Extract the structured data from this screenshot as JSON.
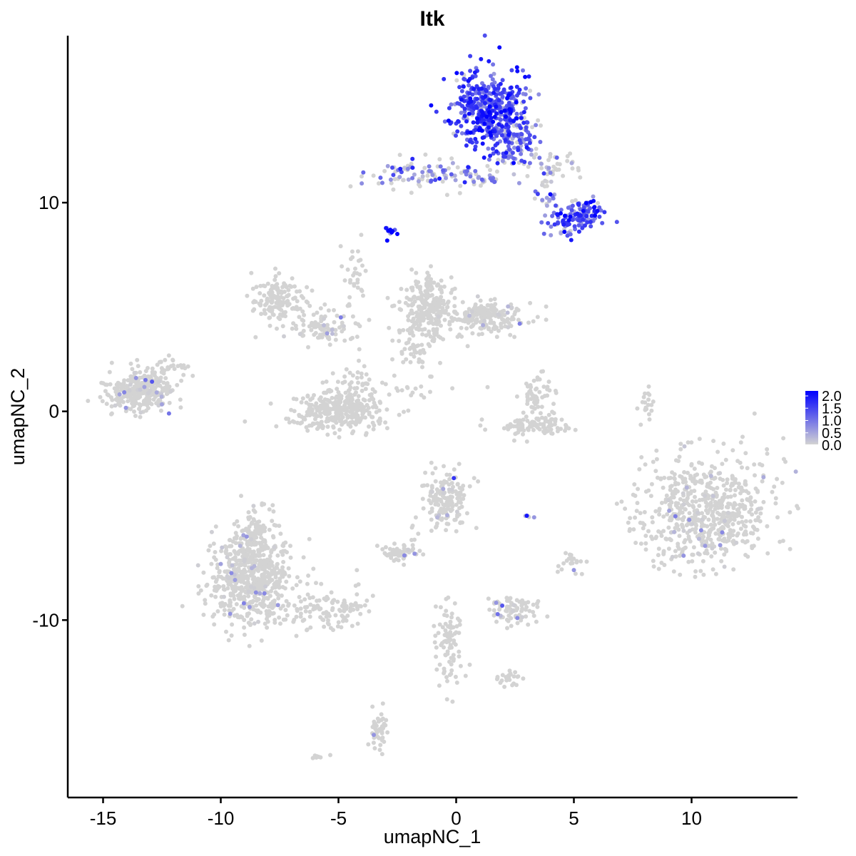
{
  "chart_data": {
    "type": "scatter",
    "title": "Itk",
    "xlabel": "umapNC_1",
    "ylabel": "umapNC_2",
    "xlim": [
      -16.5,
      14.5
    ],
    "ylim": [
      -18.5,
      18.0
    ],
    "x_ticks": [
      -15,
      -10,
      -5,
      0,
      5,
      10
    ],
    "x_tick_labels": [
      "-15",
      "-10",
      "-5",
      "0",
      "5",
      "10"
    ],
    "y_ticks": [
      -10,
      0,
      10
    ],
    "y_tick_labels": [
      "-10",
      "0",
      "10"
    ],
    "grid": false,
    "legend": {
      "placement": "right",
      "type": "colorbar",
      "labels": [
        "2.0",
        "1.5",
        "1.0",
        "0.5",
        "0.0"
      ],
      "range": [
        0.0,
        2.0
      ],
      "color_low": "#d3d3d3",
      "color_high": "#0000ff"
    },
    "point_color_low": "#d3d3d3",
    "point_color_high": "#0000ff",
    "clusters": [
      {
        "x": 1.4,
        "y": 14.5,
        "sx": 0.75,
        "sy": 0.9,
        "n": 450,
        "expr": 1.3
      },
      {
        "x": 2.4,
        "y": 13.0,
        "sx": 0.45,
        "sy": 0.7,
        "n": 120,
        "expr": 1.1
      },
      {
        "x": -1.5,
        "y": 11.4,
        "sx": 1.1,
        "sy": 0.4,
        "n": 90,
        "expr": 0.8
      },
      {
        "x": 0.8,
        "y": 11.2,
        "sx": 0.9,
        "sy": 0.3,
        "n": 30,
        "expr": 0.7
      },
      {
        "x": 4.3,
        "y": 11.8,
        "sx": 0.8,
        "sy": 0.35,
        "n": 40,
        "expr": 0.4
      },
      {
        "x": 5.5,
        "y": 9.5,
        "sx": 0.4,
        "sy": 0.35,
        "n": 90,
        "expr": 1.2
      },
      {
        "x": 4.7,
        "y": 9.0,
        "sx": 0.35,
        "sy": 0.4,
        "n": 50,
        "expr": 1.1
      },
      {
        "x": 3.9,
        "y": 10.2,
        "sx": 0.35,
        "sy": 0.5,
        "n": 25,
        "expr": 0.8
      },
      {
        "x": -2.8,
        "y": 8.6,
        "sx": 0.08,
        "sy": 0.1,
        "n": 10,
        "expr": 1.6
      },
      {
        "x": -13.4,
        "y": 1.0,
        "sx": 0.7,
        "sy": 0.5,
        "n": 320,
        "expr": 0.02
      },
      {
        "x": -12.0,
        "y": 2.2,
        "sx": 0.3,
        "sy": 0.3,
        "n": 20,
        "expr": 0.0
      },
      {
        "x": -7.5,
        "y": 5.4,
        "sx": 0.5,
        "sy": 0.6,
        "n": 150,
        "expr": 0.0
      },
      {
        "x": -5.5,
        "y": 4.0,
        "sx": 0.6,
        "sy": 0.4,
        "n": 80,
        "expr": 0.01
      },
      {
        "x": -4.3,
        "y": 6.0,
        "sx": 0.3,
        "sy": 0.9,
        "n": 35,
        "expr": 0.0
      },
      {
        "x": -5.1,
        "y": 0.0,
        "sx": 1.0,
        "sy": 0.5,
        "n": 320,
        "expr": 0.0
      },
      {
        "x": -4.4,
        "y": 0.9,
        "sx": 0.5,
        "sy": 0.6,
        "n": 60,
        "expr": 0.0
      },
      {
        "x": -1.2,
        "y": 5.0,
        "sx": 0.55,
        "sy": 0.8,
        "n": 250,
        "expr": 0.0
      },
      {
        "x": 1.2,
        "y": 4.5,
        "sx": 0.9,
        "sy": 0.4,
        "n": 200,
        "expr": 0.01
      },
      {
        "x": -1.8,
        "y": 3.0,
        "sx": 0.4,
        "sy": 0.5,
        "n": 35,
        "expr": 0.0
      },
      {
        "x": 3.4,
        "y": 0.7,
        "sx": 0.35,
        "sy": 0.5,
        "n": 60,
        "expr": 0.0
      },
      {
        "x": 3.3,
        "y": -0.7,
        "sx": 0.8,
        "sy": 0.25,
        "n": 100,
        "expr": 0.0
      },
      {
        "x": -1.5,
        "y": 1.1,
        "sx": 0.8,
        "sy": 0.25,
        "n": 20,
        "expr": 0.0
      },
      {
        "x": 8.1,
        "y": 0.3,
        "sx": 0.15,
        "sy": 0.5,
        "n": 20,
        "expr": 0.0
      },
      {
        "x": 10.6,
        "y": -4.8,
        "sx": 1.4,
        "sy": 1.3,
        "n": 650,
        "expr": 0.02
      },
      {
        "x": -0.5,
        "y": -4.2,
        "sx": 0.55,
        "sy": 0.7,
        "n": 150,
        "expr": 0.02
      },
      {
        "x": 3.0,
        "y": -5.0,
        "sx": 0.1,
        "sy": 0.1,
        "n": 4,
        "expr": 0.3
      },
      {
        "x": -8.7,
        "y": -8.0,
        "sx": 0.85,
        "sy": 1.1,
        "n": 600,
        "expr": 0.01
      },
      {
        "x": -8.6,
        "y": -5.8,
        "sx": 0.45,
        "sy": 0.6,
        "n": 90,
        "expr": 0.0
      },
      {
        "x": -5.5,
        "y": -9.5,
        "sx": 1.0,
        "sy": 0.5,
        "n": 120,
        "expr": 0.0
      },
      {
        "x": -2.5,
        "y": -6.8,
        "sx": 0.35,
        "sy": 0.25,
        "n": 50,
        "expr": 0.03
      },
      {
        "x": -2.0,
        "y": -6.0,
        "sx": 0.2,
        "sy": 0.4,
        "n": 10,
        "expr": 0.0
      },
      {
        "x": 5.0,
        "y": -7.3,
        "sx": 0.3,
        "sy": 0.3,
        "n": 20,
        "expr": 0.0
      },
      {
        "x": 2.5,
        "y": -9.5,
        "sx": 0.6,
        "sy": 0.35,
        "n": 80,
        "expr": 0.03
      },
      {
        "x": -0.3,
        "y": -11.0,
        "sx": 0.3,
        "sy": 1.0,
        "n": 90,
        "expr": 0.0
      },
      {
        "x": 2.3,
        "y": -12.8,
        "sx": 0.3,
        "sy": 0.2,
        "n": 25,
        "expr": 0.0
      },
      {
        "x": -3.3,
        "y": -15.3,
        "sx": 0.2,
        "sy": 0.5,
        "n": 45,
        "expr": 0.0
      },
      {
        "x": -5.8,
        "y": -16.5,
        "sx": 0.2,
        "sy": 0.1,
        "n": 8,
        "expr": 0.0
      }
    ],
    "highlighted_points": [
      {
        "x": -2.5,
        "y": 8.5,
        "expr": 2.0
      },
      {
        "x": -2.8,
        "y": 8.7,
        "expr": 2.0
      },
      {
        "x": 4.6,
        "y": 8.6,
        "expr": 2.0
      },
      {
        "x": 4.0,
        "y": 10.4,
        "expr": 1.9
      },
      {
        "x": 6.0,
        "y": 9.6,
        "expr": 1.9
      },
      {
        "x": 5.4,
        "y": 9.6,
        "expr": 1.9
      },
      {
        "x": 3.0,
        "y": -5.0,
        "expr": 1.8
      },
      {
        "x": -0.1,
        "y": -3.2,
        "expr": 1.5
      },
      {
        "x": -13.2,
        "y": 1.5,
        "expr": 0.9
      },
      {
        "x": -13.6,
        "y": 1.6,
        "expr": 0.6
      },
      {
        "x": -12.2,
        "y": -0.1,
        "expr": 0.9
      },
      {
        "x": -4.9,
        "y": 4.5,
        "expr": 0.8
      },
      {
        "x": 2.7,
        "y": 4.2,
        "expr": 0.8
      },
      {
        "x": 9.9,
        "y": -5.2,
        "expr": 0.6
      },
      {
        "x": 11.3,
        "y": -5.8,
        "expr": 0.7
      },
      {
        "x": -2.2,
        "y": -6.9,
        "expr": 0.7
      },
      {
        "x": -3.5,
        "y": -15.5,
        "expr": 0.6
      },
      {
        "x": 2.6,
        "y": -9.9,
        "expr": 0.7
      },
      {
        "x": -9.6,
        "y": -9.7,
        "expr": 0.6
      },
      {
        "x": -8.9,
        "y": -6.0,
        "expr": 0.6
      },
      {
        "x": 5.0,
        "y": -7.6,
        "expr": 0.6
      }
    ]
  }
}
